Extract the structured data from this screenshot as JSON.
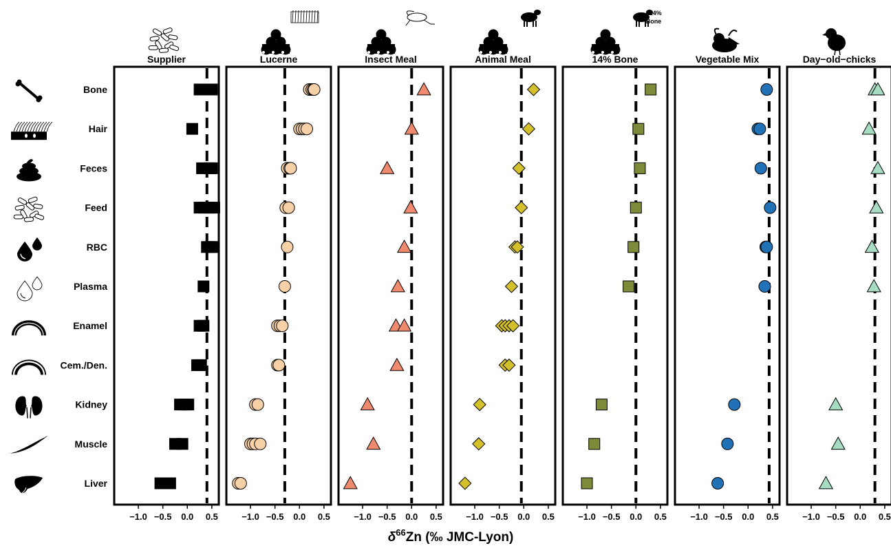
{
  "chart_data": {
    "type": "scatter",
    "xlabel_prefix": "δ",
    "xlabel_sup": "66",
    "xlabel_rest": "Zn (‰ JMC-Lyon)",
    "xlim": [
      -1.45,
      0.6
    ],
    "xticks": [
      -1.0,
      -0.5,
      0.0,
      0.5
    ],
    "xtick_labels": [
      "−1.0",
      "−0.5",
      "0.0",
      "0.5"
    ],
    "categories": [
      "Bone",
      "Hair",
      "Feces",
      "Feed",
      "RBC",
      "Plasma",
      "Enamel",
      "Cem./Den.",
      "Kidney",
      "Muscle",
      "Liver"
    ],
    "category_icons": [
      "bone-icon",
      "hair-icon",
      "feces-icon",
      "feed-pellets-icon",
      "blood-drops-icon",
      "plasma-drops-icon",
      "enamel-icon",
      "cementum-dentine-icon",
      "kidney-icon",
      "muscle-icon",
      "liver-icon"
    ],
    "badge_text": [
      "+14%",
      "Bone"
    ],
    "series": [
      {
        "name": "Supplier",
        "marker": "square",
        "color": "#000000",
        "icon": "feed-pellets-icon",
        "ref_line": 0.4,
        "points": [
          [
            [
              0.25,
              0.35,
              0.45,
              0.5
            ]
          ],
          [
            [
              0.1
            ]
          ],
          [
            [
              0.3,
              0.45,
              0.5
            ]
          ],
          [
            [
              0.25,
              0.35,
              0.45,
              0.55
            ]
          ],
          [
            [
              0.4,
              0.48,
              0.52
            ]
          ],
          [
            [
              0.33
            ]
          ],
          [
            [
              0.25,
              0.33
            ]
          ],
          [
            [
              0.2,
              0.28
            ]
          ],
          [
            [
              -0.15,
              -0.05,
              0.02
            ]
          ],
          [
            [
              -0.25,
              -0.1
            ]
          ],
          [
            [
              -0.55,
              -0.45,
              -0.35
            ]
          ]
        ]
      },
      {
        "name": "Lucerne",
        "marker": "circle",
        "color": "#f6d1a7",
        "icon": "lucerne-hay-icon",
        "ref_line": -0.3,
        "points": [
          [
            [
              0.2,
              0.25,
              0.28,
              0.3
            ]
          ],
          [
            [
              0.0,
              0.05,
              0.1,
              0.15
            ]
          ],
          [
            [
              -0.25,
              -0.2,
              -0.18
            ]
          ],
          [
            [
              -0.28,
              -0.22
            ]
          ],
          [
            [
              -0.25
            ]
          ],
          [
            [
              -0.3
            ]
          ],
          [
            [
              -0.45,
              -0.4,
              -0.35
            ]
          ],
          [
            [
              -0.45,
              -0.42
            ]
          ],
          [
            [
              -0.9,
              -0.85
            ]
          ],
          [
            [
              -1.0,
              -0.95,
              -0.9,
              -0.8
            ]
          ],
          [
            [
              -1.25,
              -1.2
            ]
          ]
        ]
      },
      {
        "name": "Insect Meal",
        "marker": "triangle",
        "color": "#f08a6f",
        "icon": "cricket-icon",
        "ref_line": 0.0,
        "points": [
          [
            [
              0.25
            ]
          ],
          [
            [
              0.0
            ]
          ],
          [
            [
              -0.5
            ]
          ],
          [
            [
              -0.02
            ]
          ],
          [
            [
              -0.15
            ]
          ],
          [
            [
              -0.28
            ]
          ],
          [
            [
              -0.32,
              -0.15
            ]
          ],
          [
            [
              -0.3
            ]
          ],
          [
            [
              -0.9
            ]
          ],
          [
            [
              -0.78
            ]
          ],
          [
            [
              -1.25
            ]
          ]
        ]
      },
      {
        "name": "Animal Meal",
        "marker": "diamond",
        "color": "#d4c02a",
        "icon": "lamb-icon",
        "ref_line": -0.05,
        "points": [
          [
            [
              0.2
            ]
          ],
          [
            [
              0.1
            ]
          ],
          [
            [
              -0.1
            ]
          ],
          [
            [
              -0.05
            ]
          ],
          [
            [
              -0.18,
              -0.13
            ]
          ],
          [
            [
              -0.25
            ]
          ],
          [
            [
              -0.45,
              -0.38,
              -0.3,
              -0.22
            ]
          ],
          [
            [
              -0.38,
              -0.3
            ]
          ],
          [
            [
              -0.9
            ]
          ],
          [
            [
              -0.92
            ]
          ],
          [
            [
              -1.2
            ]
          ]
        ]
      },
      {
        "name": "14% Bone",
        "marker": "square",
        "color": "#7c8a3a",
        "icon": "lamb-bone-icon",
        "ref_line": 0.0,
        "points": [
          [
            [
              0.3
            ]
          ],
          [
            [
              0.05
            ]
          ],
          [
            [
              0.08
            ]
          ],
          [
            [
              0.0
            ]
          ],
          [
            [
              -0.05
            ]
          ],
          [
            [
              -0.15
            ]
          ],
          [],
          [],
          [
            [
              -0.7
            ]
          ],
          [
            [
              -0.85
            ]
          ],
          [
            [
              -1.0
            ]
          ]
        ]
      },
      {
        "name": "Vegetable Mix",
        "marker": "circle",
        "color": "#2071b6",
        "icon": "vegetables-icon",
        "ref_line": 0.43,
        "points": [
          [
            [
              0.38
            ]
          ],
          [
            [
              0.2,
              0.24
            ]
          ],
          [
            [
              0.26
            ]
          ],
          [
            [
              0.45
            ]
          ],
          [
            [
              0.36,
              0.38
            ]
          ],
          [
            [
              0.34
            ]
          ],
          [],
          [],
          [
            [
              -0.28
            ]
          ],
          [
            [
              -0.42
            ]
          ],
          [
            [
              -0.62
            ]
          ]
        ]
      },
      {
        "name": "Day−old−chicks",
        "marker": "triangle",
        "color": "#a6dcc2",
        "icon": "chick-icon",
        "ref_line": 0.3,
        "points": [
          [
            [
              0.3,
              0.36
            ]
          ],
          [
            [
              0.18
            ]
          ],
          [
            [
              0.36
            ]
          ],
          [
            [
              0.33
            ]
          ],
          [
            [
              0.24
            ]
          ],
          [
            [
              0.28
            ]
          ],
          [],
          [],
          [
            [
              -0.5
            ]
          ],
          [
            [
              -0.45
            ]
          ],
          [
            [
              -0.7
            ]
          ]
        ]
      }
    ]
  }
}
